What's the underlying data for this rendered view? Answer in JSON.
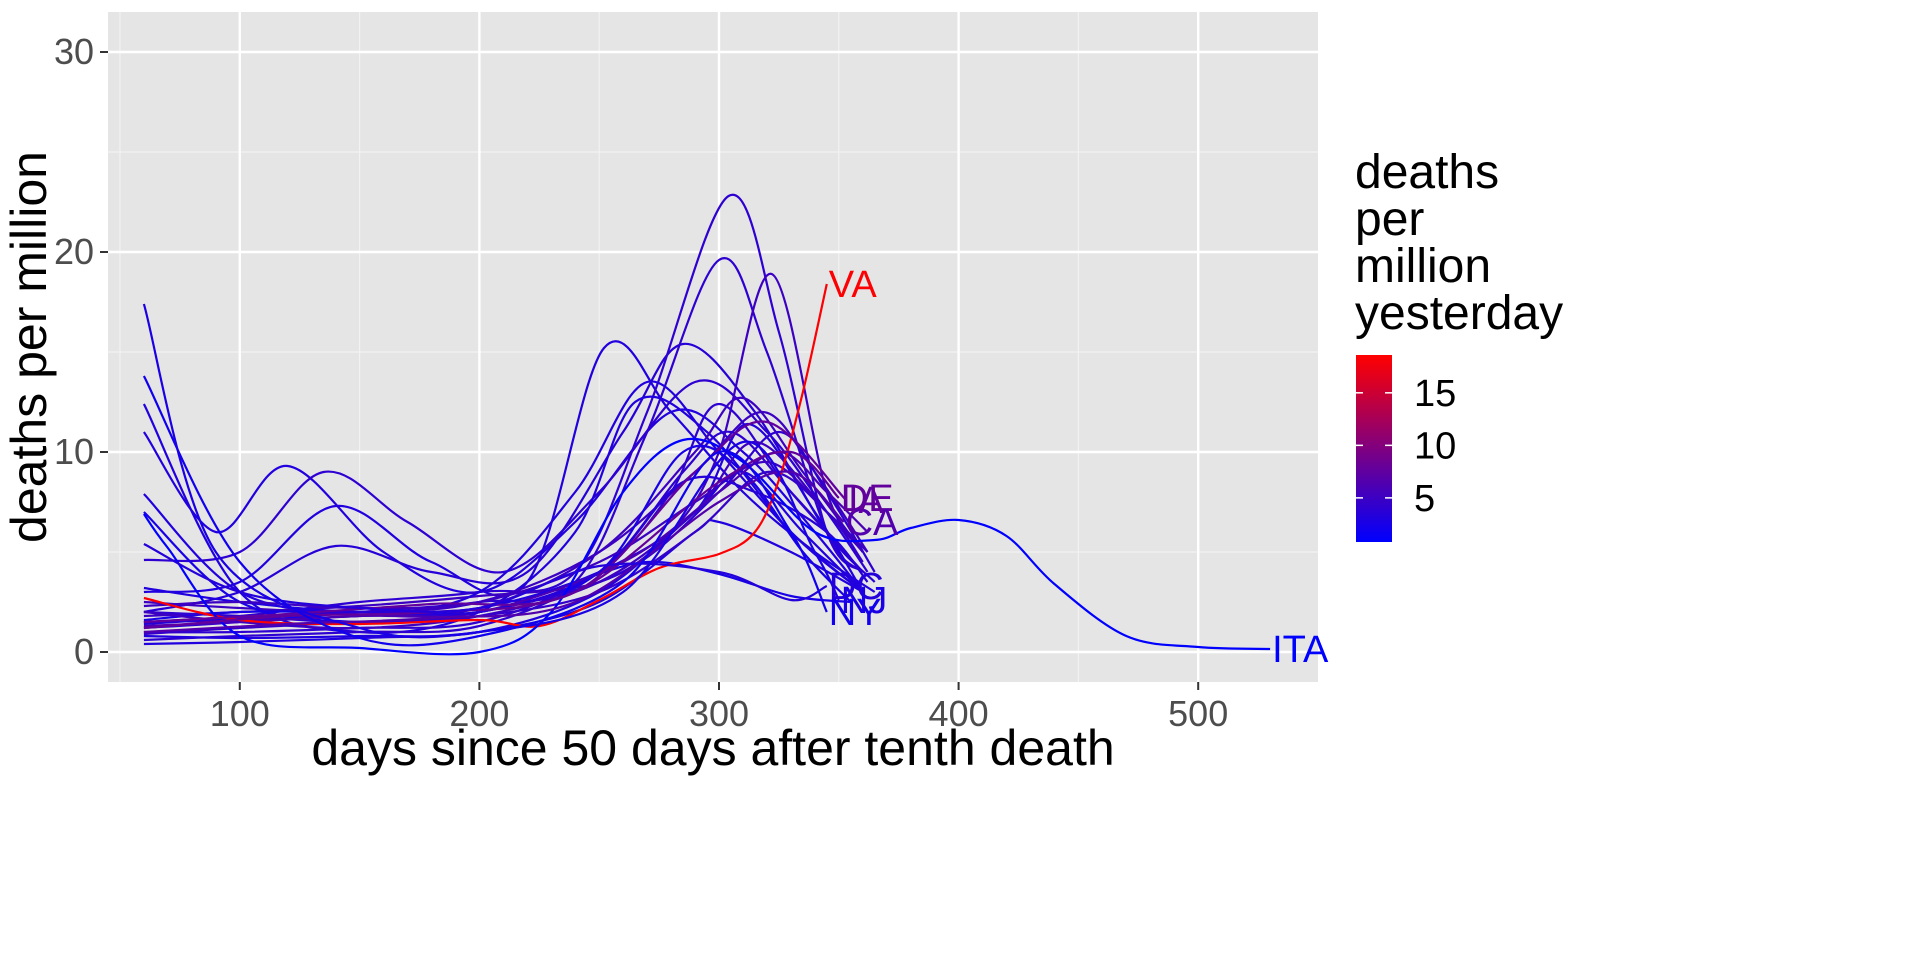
{
  "chart_data": {
    "type": "line",
    "xlabel": "days since 50 days after tenth death",
    "ylabel": "deaths per million",
    "xlim": [
      45,
      550
    ],
    "ylim": [
      -1.5,
      32
    ],
    "x_ticks": [
      100,
      200,
      300,
      400,
      500
    ],
    "y_ticks": [
      0,
      10,
      20,
      30
    ],
    "grid": true,
    "legend": {
      "title_lines": [
        "deaths",
        "per",
        "million",
        "yesterday"
      ],
      "position": "right",
      "type": "colorbar",
      "range": [
        0.8,
        18.6
      ],
      "ticks": [
        5,
        10,
        15
      ],
      "low_color": "#0000ff",
      "high_color": "#ff0000"
    },
    "series": [
      {
        "name": "VA",
        "last": 18.4,
        "x": [
          60,
          100,
          150,
          200,
          225,
          250,
          275,
          300,
          315,
          325,
          335,
          345
        ],
        "y": [
          2.7,
          1.6,
          1.4,
          1.6,
          1.3,
          2.6,
          4.2,
          4.9,
          6.0,
          8.6,
          13.0,
          18.4
        ]
      },
      {
        "name": "ITA",
        "last": 0.15,
        "x": [
          60,
          70,
          100,
          150,
          200,
          230,
          260,
          285,
          310,
          340,
          365,
          380,
          400,
          420,
          440,
          470,
          500,
          530
        ],
        "y": [
          6.9,
          5.2,
          0.8,
          0.2,
          0.0,
          2.0,
          8.0,
          10.6,
          9.5,
          6.0,
          5.6,
          6.2,
          6.6,
          5.8,
          3.4,
          0.8,
          0.25,
          0.15
        ]
      },
      {
        "name": "DE",
        "last": 7.7,
        "x": [
          60,
          120,
          180,
          240,
          300,
          330,
          350
        ],
        "y": [
          1.2,
          1.8,
          2.0,
          3.0,
          8.5,
          10.0,
          7.7
        ]
      },
      {
        "name": "CA",
        "last": 6.5,
        "x": [
          60,
          120,
          180,
          240,
          300,
          330,
          352
        ],
        "y": [
          1.0,
          1.4,
          1.7,
          2.5,
          7.5,
          9.0,
          6.5
        ]
      },
      {
        "name": "IA",
        "last": 7.6,
        "x": [
          60,
          120,
          180,
          240,
          290,
          320,
          353
        ],
        "y": [
          1.5,
          1.9,
          2.4,
          3.0,
          9.0,
          11.5,
          7.6
        ]
      },
      {
        "name": "DC",
        "last": 3.3,
        "x": [
          60,
          100,
          150,
          200,
          250,
          300,
          330,
          345
        ],
        "y": [
          5.4,
          3.0,
          2.2,
          2.2,
          4.3,
          4.0,
          2.6,
          3.3
        ]
      },
      {
        "name": "NY",
        "last": 2.0,
        "x": [
          60,
          100,
          150,
          200,
          260,
          300,
          330,
          345
        ],
        "y": [
          13.8,
          4.5,
          0.7,
          0.8,
          3.5,
          10.0,
          6.0,
          2.0
        ]
      },
      {
        "name": "NJ",
        "last": 2.6,
        "x": [
          60,
          90,
          150,
          200,
          260,
          310,
          340,
          350
        ],
        "y": [
          17.4,
          5.0,
          1.2,
          1.0,
          3.0,
          10.5,
          5.0,
          2.6
        ]
      },
      {
        "name": "",
        "last": 3.0,
        "x": [
          60,
          90,
          120,
          160,
          200,
          240,
          280,
          310,
          340,
          360
        ],
        "y": [
          11.0,
          6.0,
          9.3,
          5.0,
          3.0,
          6.5,
          12.0,
          10.0,
          6.0,
          3.0
        ]
      },
      {
        "name": "",
        "last": 4.0,
        "x": [
          60,
          100,
          135,
          170,
          210,
          250,
          290,
          320,
          345,
          362
        ],
        "y": [
          4.6,
          5.0,
          9.0,
          6.5,
          4.0,
          8.0,
          13.5,
          11.0,
          7.0,
          4.0
        ]
      },
      {
        "name": "",
        "last": 3.0,
        "x": [
          60,
          100,
          140,
          180,
          220,
          252,
          280,
          310,
          340,
          365
        ],
        "y": [
          3.0,
          3.5,
          7.3,
          4.5,
          3.5,
          15.2,
          12.0,
          8.0,
          5.0,
          3.0
        ]
      },
      {
        "name": "",
        "last": 3.5,
        "x": [
          60,
          100,
          140,
          180,
          220,
          260,
          285,
          315,
          345,
          365
        ],
        "y": [
          2.0,
          3.0,
          5.3,
          4.0,
          4.0,
          11.0,
          15.4,
          12.0,
          6.0,
          3.5
        ]
      },
      {
        "name": "",
        "last": 4.0,
        "x": [
          60,
          100,
          150,
          200,
          240,
          270,
          304,
          325,
          345,
          360
        ],
        "y": [
          1.5,
          1.8,
          2.5,
          3.0,
          4.0,
          12.0,
          22.8,
          16.0,
          6.0,
          4.0
        ]
      },
      {
        "name": "",
        "last": 4.0,
        "x": [
          60,
          100,
          150,
          200,
          240,
          270,
          300,
          320,
          345,
          360
        ],
        "y": [
          1.2,
          1.5,
          2.0,
          2.5,
          3.5,
          11.0,
          19.6,
          15.0,
          6.0,
          4.0
        ]
      },
      {
        "name": "",
        "last": 5.0,
        "x": [
          60,
          100,
          150,
          200,
          250,
          280,
          300,
          322,
          345,
          360
        ],
        "y": [
          1.8,
          2.0,
          2.3,
          2.8,
          3.5,
          6.0,
          10.0,
          18.9,
          8.0,
          5.0
        ]
      },
      {
        "name": "",
        "last": 3.0,
        "x": [
          60,
          100,
          150,
          200,
          240,
          270,
          300,
          330,
          360
        ],
        "y": [
          7.9,
          3.0,
          2.0,
          3.0,
          8.0,
          13.5,
          10.0,
          6.0,
          3.0
        ]
      },
      {
        "name": "",
        "last": 3.0,
        "x": [
          60,
          100,
          150,
          200,
          240,
          265,
          295,
          330,
          360
        ],
        "y": [
          12.4,
          3.0,
          1.0,
          2.0,
          6.0,
          12.5,
          11.0,
          6.0,
          3.0
        ]
      },
      {
        "name": "",
        "last": 5.0,
        "x": [
          60,
          100,
          150,
          200,
          250,
          290,
          310,
          335,
          360
        ],
        "y": [
          1.5,
          1.6,
          1.8,
          2.2,
          5.0,
          10.0,
          12.7,
          9.0,
          5.0
        ]
      },
      {
        "name": "",
        "last": 5.0,
        "x": [
          60,
          100,
          150,
          200,
          250,
          290,
          318,
          340,
          362
        ],
        "y": [
          2.5,
          2.2,
          2.0,
          2.5,
          5.0,
          9.0,
          12.0,
          9.0,
          5.0
        ]
      },
      {
        "name": "",
        "last": 4.0,
        "x": [
          60,
          100,
          150,
          200,
          250,
          280,
          300,
          330,
          360
        ],
        "y": [
          1.0,
          1.0,
          1.2,
          1.5,
          4.0,
          8.0,
          12.4,
          8.0,
          4.0
        ]
      },
      {
        "name": "",
        "last": 4.0,
        "x": [
          60,
          100,
          150,
          200,
          250,
          285,
          305,
          330,
          360
        ],
        "y": [
          0.6,
          0.8,
          1.0,
          1.3,
          4.0,
          9.0,
          11.0,
          8.0,
          4.0
        ]
      },
      {
        "name": "",
        "last": 3.0,
        "x": [
          60,
          100,
          150,
          200,
          250,
          290,
          310,
          335,
          360
        ],
        "y": [
          0.8,
          0.7,
          0.8,
          1.0,
          3.0,
          7.0,
          9.0,
          6.0,
          3.0
        ]
      },
      {
        "name": "",
        "last": 3.0,
        "x": [
          60,
          100,
          150,
          200,
          250,
          290,
          300,
          330,
          360
        ],
        "y": [
          0.4,
          0.5,
          0.7,
          1.0,
          2.5,
          6.0,
          6.5,
          5.0,
          3.0
        ]
      },
      {
        "name": "",
        "last": 2.5,
        "x": [
          60,
          100,
          150,
          200,
          240,
          270,
          300,
          330,
          355
        ],
        "y": [
          1.6,
          2.0,
          2.0,
          2.0,
          3.5,
          4.5,
          3.9,
          2.8,
          2.5
        ]
      },
      {
        "name": "",
        "last": 2.5,
        "x": [
          60,
          100,
          150,
          200,
          250,
          285,
          310,
          335,
          355
        ],
        "y": [
          7.0,
          2.5,
          1.5,
          2.0,
          4.0,
          10.0,
          9.0,
          5.0,
          2.5
        ]
      },
      {
        "name": "",
        "last": 3.0,
        "x": [
          60,
          100,
          150,
          200,
          250,
          290,
          312,
          340,
          360
        ],
        "y": [
          3.2,
          2.5,
          2.0,
          2.2,
          4.0,
          7.0,
          11.4,
          7.0,
          3.0
        ]
      },
      {
        "name": "",
        "last": 4.0,
        "x": [
          60,
          100,
          150,
          200,
          260,
          300,
          325,
          345,
          365
        ],
        "y": [
          2.0,
          1.8,
          1.5,
          2.0,
          4.0,
          8.0,
          11.0,
          8.0,
          4.0
        ]
      },
      {
        "name": "",
        "last": 6.0,
        "x": [
          60,
          100,
          150,
          200,
          260,
          300,
          325,
          345,
          362
        ],
        "y": [
          1.3,
          1.5,
          1.8,
          2.0,
          4.5,
          8.0,
          10.0,
          8.0,
          6.0
        ]
      },
      {
        "name": "",
        "last": 5.0,
        "x": [
          60,
          100,
          150,
          200,
          250,
          290,
          320,
          345,
          362
        ],
        "y": [
          2.3,
          2.5,
          2.2,
          2.5,
          4.5,
          7.5,
          9.5,
          7.0,
          5.0
        ]
      },
      {
        "name": "",
        "last": 5.0,
        "x": [
          60,
          100,
          150,
          200,
          250,
          290,
          315,
          345,
          360
        ],
        "y": [
          2.0,
          1.5,
          1.2,
          1.8,
          3.5,
          7.0,
          10.5,
          7.0,
          5.0
        ]
      },
      {
        "name": "",
        "last": 4.5,
        "x": [
          60,
          100,
          150,
          200,
          250,
          290,
          320,
          345,
          360
        ],
        "y": [
          0.9,
          1.2,
          1.5,
          1.8,
          3.0,
          6.0,
          9.0,
          7.0,
          4.5
        ]
      },
      {
        "name": "",
        "last": 3.5,
        "x": [
          60,
          100,
          150,
          200,
          250,
          285,
          315,
          345,
          362
        ],
        "y": [
          1.4,
          1.7,
          2.0,
          2.0,
          4.0,
          8.5,
          8.0,
          6.0,
          3.5
        ]
      }
    ]
  }
}
